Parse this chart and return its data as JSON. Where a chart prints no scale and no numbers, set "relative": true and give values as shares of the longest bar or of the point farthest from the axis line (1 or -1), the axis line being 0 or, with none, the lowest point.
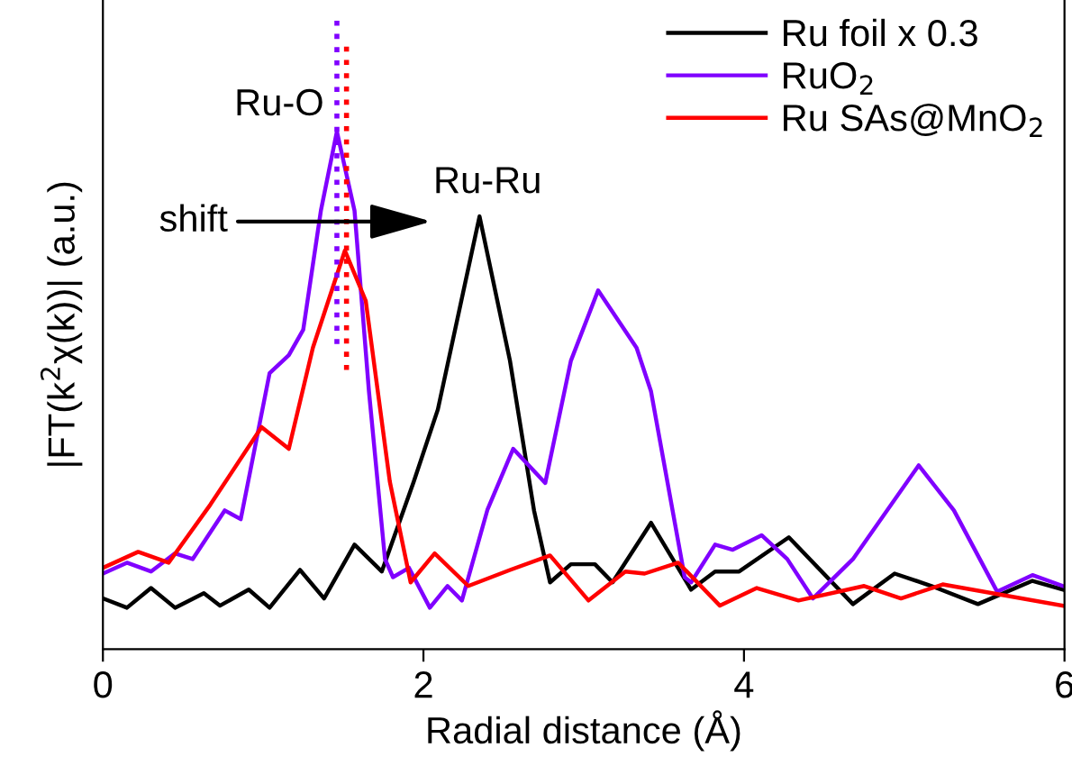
{
  "chart_data": {
    "type": "line",
    "relative": true,
    "xlabel": "Radial distance (Å)",
    "ylabel": "|FT(k$^{2}$χ(k))| (a.u.)",
    "xlim": [
      0,
      6
    ],
    "xticks": [
      0,
      2,
      4,
      6
    ],
    "legend": "top right",
    "grid": false,
    "line_style": "solid",
    "marker": "none",
    "annotations": [
      "Ru-O",
      "Ru-Ru",
      "shift"
    ],
    "ref_lines": [
      {
        "axis": "x",
        "value": 1.46,
        "label": null,
        "color": "#8000ff",
        "line_style": "dotted"
      },
      {
        "axis": "x",
        "value": 1.52,
        "label": null,
        "color": "#ff0000",
        "line_style": "dotted"
      }
    ],
    "series": [
      {
        "name": "Ru foil x 0.3",
        "color": "#000000",
        "x": [
          0,
          0.15,
          0.3,
          0.45,
          0.63,
          0.73,
          0.91,
          1.04,
          1.23,
          1.38,
          1.57,
          1.74,
          1.94,
          2.09,
          2.35,
          2.54,
          2.69,
          2.79,
          2.92,
          3.07,
          3.18,
          3.42,
          3.67,
          3.82,
          3.97,
          4.28,
          4.68,
          4.94,
          5.17,
          5.46,
          5.8,
          5.99
        ],
        "values": [
          0.098,
          0.08,
          0.118,
          0.08,
          0.108,
          0.084,
          0.115,
          0.08,
          0.153,
          0.098,
          0.202,
          0.15,
          0.324,
          0.463,
          0.836,
          0.557,
          0.268,
          0.129,
          0.164,
          0.164,
          0.129,
          0.244,
          0.115,
          0.15,
          0.15,
          0.216,
          0.087,
          0.146,
          0.122,
          0.087,
          0.132,
          0.115
        ]
      },
      {
        "name": "RuO$_{2}$",
        "color": "#8000ff",
        "x": [
          0,
          0.15,
          0.3,
          0.45,
          0.56,
          0.76,
          0.86,
          1.04,
          1.16,
          1.25,
          1.36,
          1.46,
          1.57,
          1.66,
          1.76,
          1.81,
          1.91,
          2.04,
          2.15,
          2.24,
          2.4,
          2.56,
          2.76,
          2.92,
          3.09,
          3.33,
          3.42,
          3.63,
          3.67,
          3.82,
          3.93,
          4.11,
          4.27,
          4.43,
          4.68,
          5.09,
          5.31,
          5.58,
          5.8,
          5.99
        ],
        "values": [
          0.146,
          0.167,
          0.15,
          0.185,
          0.174,
          0.268,
          0.251,
          0.533,
          0.568,
          0.617,
          0.847,
          1.0,
          0.847,
          0.498,
          0.174,
          0.139,
          0.157,
          0.08,
          0.122,
          0.094,
          0.27,
          0.387,
          0.321,
          0.557,
          0.693,
          0.582,
          0.498,
          0.139,
          0.129,
          0.202,
          0.192,
          0.22,
          0.174,
          0.098,
          0.174,
          0.355,
          0.268,
          0.111,
          0.143,
          0.122
        ]
      },
      {
        "name": "Ru SAs@MnO$_{2}$",
        "color": "#ff0000",
        "x": [
          0,
          0.22,
          0.41,
          0.67,
          0.99,
          1.16,
          1.31,
          1.51,
          1.64,
          1.79,
          1.92,
          2.07,
          2.28,
          2.54,
          2.79,
          3.03,
          3.26,
          3.38,
          3.59,
          3.85,
          4.08,
          4.34,
          4.75,
          4.98,
          5.24,
          5.99
        ],
        "values": [
          0.157,
          0.188,
          0.167,
          0.279,
          0.429,
          0.387,
          0.582,
          0.77,
          0.673,
          0.324,
          0.129,
          0.185,
          0.122,
          0.153,
          0.181,
          0.094,
          0.15,
          0.146,
          0.167,
          0.084,
          0.118,
          0.094,
          0.122,
          0.098,
          0.125,
          0.084
        ]
      }
    ]
  }
}
